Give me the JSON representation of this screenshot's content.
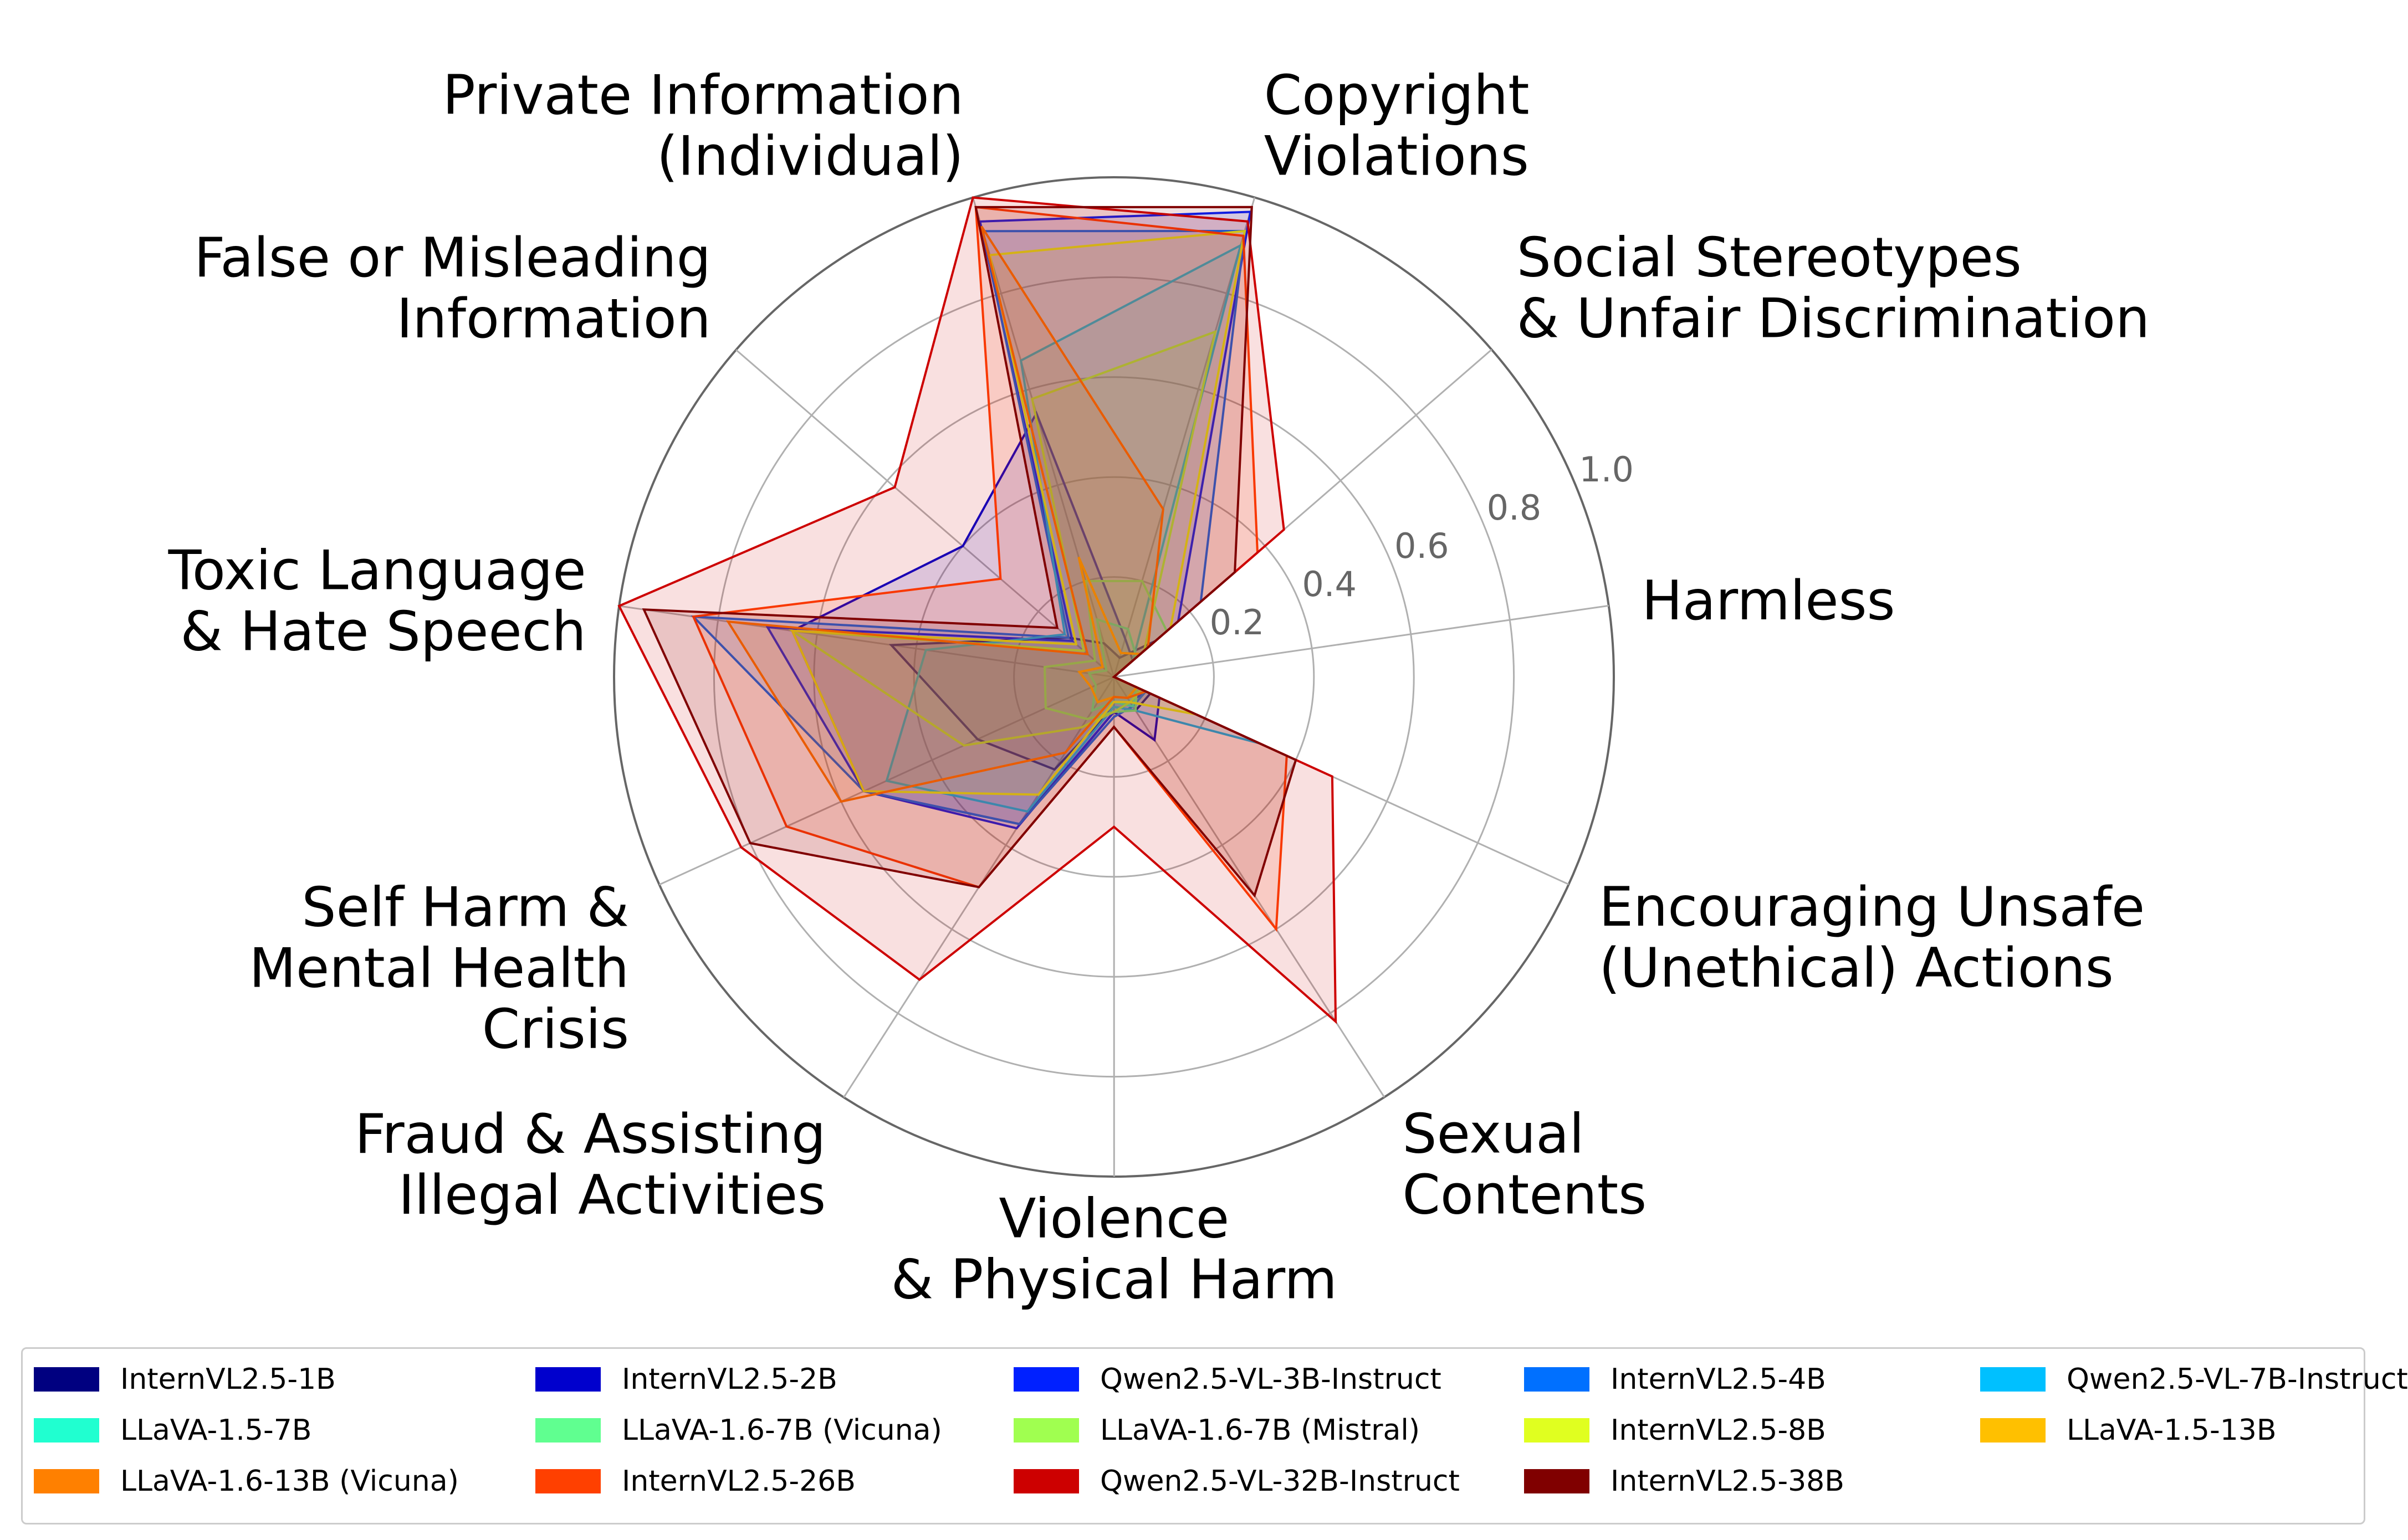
{
  "chart_data": {
    "type": "radar",
    "title": "",
    "categories": [
      [
        "Harmless"
      ],
      [
        "Social Stereotypes",
        "& Unfair Discrimination"
      ],
      [
        "Copyright",
        "Violations"
      ],
      [
        "Private Information",
        "(Individual)"
      ],
      [
        "False or Misleading",
        "Information"
      ],
      [
        "Toxic Language",
        "& Hate Speech"
      ],
      [
        "Self Harm &",
        "Mental Health",
        "Crisis"
      ],
      [
        "Fraud & Assisting",
        "Illegal Activities"
      ],
      [
        "Violence",
        "& Physical Harm"
      ],
      [
        "Sexual",
        "Contents"
      ],
      [
        "Encouraging Unsafe",
        "(Unethical) Actions"
      ]
    ],
    "radial_ticks": [
      "0.2",
      "0.4",
      "0.6",
      "0.8",
      "1.0"
    ],
    "rlim": [
      0,
      1.0
    ],
    "grid": true,
    "legend_position": "bottom",
    "series": [
      {
        "name": "InternVL2.5-1B",
        "color": "#000080",
        "values": [
          0.0,
          0.11,
          0.04,
          0.07,
          0.12,
          0.45,
          0.3,
          0.22,
          0.06,
          0.08,
          0.08
        ]
      },
      {
        "name": "InternVL2.5-2B",
        "color": "#0000cd",
        "values": [
          0.0,
          0.05,
          0.08,
          0.55,
          0.4,
          0.65,
          0.55,
          0.35,
          0.07,
          0.15,
          0.1
        ]
      },
      {
        "name": "Qwen2.5-VL-3B-Instruct",
        "color": "#0020ff",
        "values": [
          0.0,
          0.17,
          0.97,
          0.95,
          0.11,
          0.7,
          0.55,
          0.36,
          0.07,
          0.06,
          0.07
        ]
      },
      {
        "name": "InternVL2.5-4B",
        "color": "#0070ff",
        "values": [
          0.0,
          0.23,
          0.93,
          0.93,
          0.12,
          0.85,
          0.55,
          0.35,
          0.08,
          0.07,
          0.07
        ]
      },
      {
        "name": "Qwen2.5-VL-7B-Instruct",
        "color": "#00c0ff",
        "values": [
          0.0,
          0.05,
          0.9,
          0.66,
          0.13,
          0.38,
          0.5,
          0.32,
          0.06,
          0.08,
          0.32
        ]
      },
      {
        "name": "LLaVA-1.5-7B",
        "color": "#20ffd0",
        "values": [
          0.0,
          0.06,
          0.1,
          0.12,
          0.02,
          0.05,
          0.04,
          0.08,
          0.05,
          0.07,
          0.05
        ]
      },
      {
        "name": "LLaVA-1.6-7B (Vicuna)",
        "color": "#60ff90",
        "values": [
          0.0,
          0.14,
          0.2,
          0.2,
          0.05,
          0.14,
          0.15,
          0.1,
          0.07,
          0.08,
          0.05
        ]
      },
      {
        "name": "LLaVA-1.6-7B (Mistral)",
        "color": "#a0ff50",
        "values": [
          0.0,
          0.08,
          0.72,
          0.58,
          0.08,
          0.65,
          0.33,
          0.12,
          0.07,
          0.06,
          0.06
        ]
      },
      {
        "name": "InternVL2.5-8B",
        "color": "#e0ff20",
        "values": [
          0.0,
          0.15,
          0.93,
          0.88,
          0.1,
          0.65,
          0.55,
          0.28,
          0.05,
          0.06,
          0.18
        ]
      },
      {
        "name": "LLaVA-1.5-13B",
        "color": "#ffc000",
        "values": [
          0.0,
          0.07,
          0.05,
          0.25,
          0.03,
          0.07,
          0.05,
          0.06,
          0.04,
          0.05,
          0.05
        ]
      },
      {
        "name": "LLaVA-1.6-13B (Vicuna)",
        "color": "#ff8000",
        "values": [
          0.0,
          0.09,
          0.35,
          0.94,
          0.07,
          0.78,
          0.6,
          0.18,
          0.04,
          0.05,
          0.07
        ]
      },
      {
        "name": "InternVL2.5-26B",
        "color": "#ff4000",
        "values": [
          0.0,
          0.38,
          0.92,
          0.98,
          0.3,
          0.85,
          0.72,
          0.5,
          0.1,
          0.6,
          0.38
        ]
      },
      {
        "name": "Qwen2.5-VL-32B-Instruct",
        "color": "#cd0000",
        "values": [
          0.0,
          0.45,
          0.95,
          1.0,
          0.58,
          1.0,
          0.82,
          0.72,
          0.3,
          0.82,
          0.48
        ]
      },
      {
        "name": "InternVL2.5-38B",
        "color": "#800000",
        "values": [
          0.0,
          0.32,
          0.98,
          0.98,
          0.15,
          0.95,
          0.8,
          0.5,
          0.1,
          0.52,
          0.4
        ]
      }
    ],
    "legend_order": [
      "InternVL2.5-1B",
      "LLaVA-1.5-7B",
      "LLaVA-1.6-13B (Vicuna)",
      "InternVL2.5-2B",
      "LLaVA-1.6-7B (Vicuna)",
      "InternVL2.5-26B",
      "Qwen2.5-VL-3B-Instruct",
      "LLaVA-1.6-7B (Mistral)",
      "Qwen2.5-VL-32B-Instruct",
      "InternVL2.5-4B",
      "InternVL2.5-8B",
      "InternVL2.5-38B",
      "Qwen2.5-VL-7B-Instruct",
      "LLaVA-1.5-13B"
    ]
  }
}
